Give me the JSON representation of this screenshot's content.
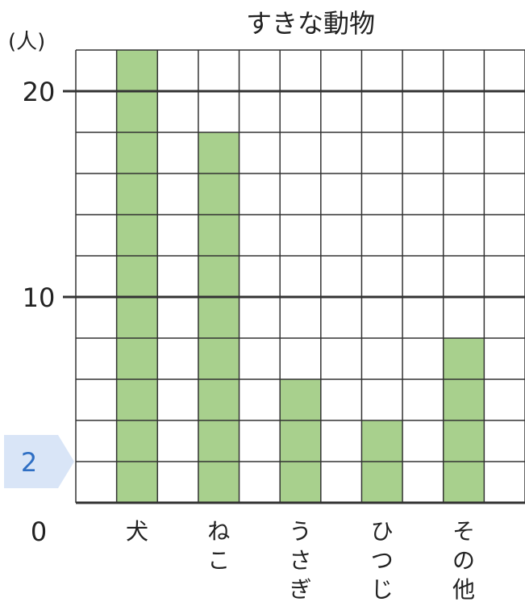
{
  "chart_data": {
    "type": "bar",
    "title": "すきな動物",
    "unit_label": "(人)",
    "categories": [
      "犬",
      "ねこ",
      "うさぎ",
      "ひつじ",
      "その他"
    ],
    "values": [
      22,
      18,
      6,
      4,
      8
    ],
    "ylim": [
      0,
      22
    ],
    "yticks": [
      "0",
      "10",
      "20"
    ],
    "y_marker": "2",
    "grid": true,
    "bar_color": "#a8d08d",
    "marker_color": "#d9e5f7",
    "marker_text_color": "#2f6fc4"
  }
}
